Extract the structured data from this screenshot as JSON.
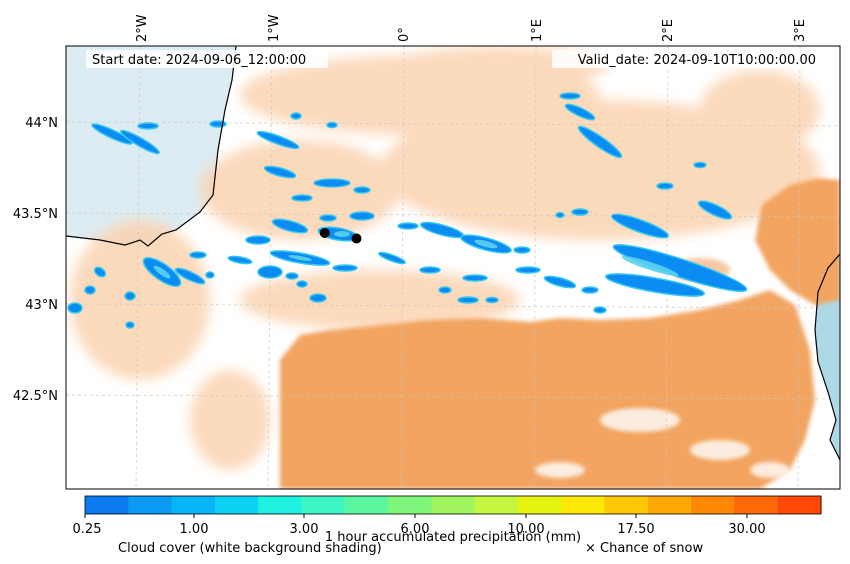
{
  "map": {
    "start_date": "Start date: 2024-09-06_12:00:00",
    "valid_date": "Valid_date: 2024-09-10T10:00:00.00",
    "lon_labels": [
      "2°W",
      "1°W",
      "0°",
      "1°E",
      "2°E",
      "3°E"
    ],
    "lat_labels": [
      "44°N",
      "43.5°N",
      "43°N",
      "42.5°N"
    ],
    "markers": [
      {
        "name": "location-marker-1",
        "lon": -0.6,
        "lat": 43.39
      },
      {
        "name": "location-marker-2",
        "lon": -0.36,
        "lat": 43.36
      }
    ]
  },
  "legend": {
    "colorbar_title": "1 hour accumulated precipitation (mm)",
    "cloud_label": "Cloud cover (white background shading)",
    "snow_label": "× Chance of snow",
    "tick_labels": [
      "0.25",
      "1.00",
      "3.00",
      "6.00",
      "10.00",
      "17.50",
      "30.00"
    ],
    "colors": [
      "#0a7cf0",
      "#0a9af4",
      "#08b4f6",
      "#0bd2f2",
      "#1ff0e0",
      "#3ef6c4",
      "#5cf6a0",
      "#7ef67c",
      "#a0f45e",
      "#c6f640",
      "#e6f410",
      "#fee806",
      "#fec806",
      "#fea806",
      "#fe8806",
      "#fe6806",
      "#fe4806"
    ]
  },
  "colors": {
    "cloud_orange": "#f2a460",
    "cloud_light": "#fbd3b0",
    "sea": "#add8e6",
    "precip_blue": "#0a8cf2",
    "precip_cyan": "#38c8ee"
  }
}
